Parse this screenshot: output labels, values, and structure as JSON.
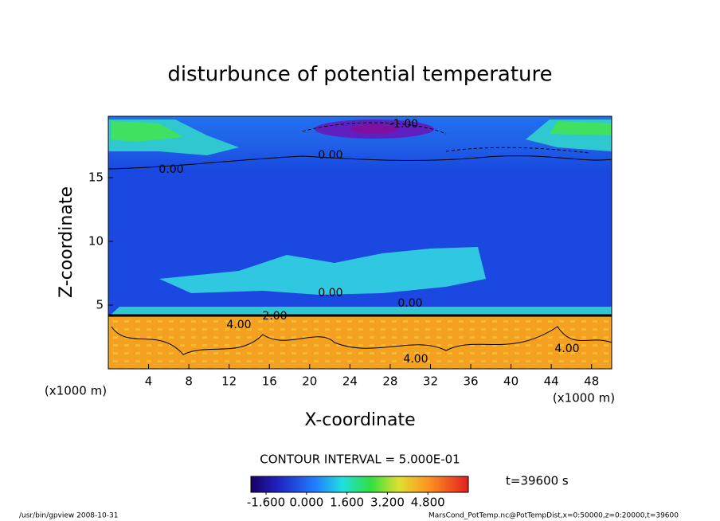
{
  "chart_data": {
    "type": "contour",
    "title": "disturbunce of potential temperature",
    "xlabel": "X-coordinate",
    "ylabel": "Z-coordinate",
    "x_unit_left": "(x1000 m)",
    "x_unit_right": "(x1000 m)",
    "xlim": [
      0,
      50
    ],
    "ylim": [
      0,
      20
    ],
    "xticks": [
      4,
      8,
      12,
      16,
      20,
      24,
      28,
      32,
      36,
      40,
      44,
      48
    ],
    "yticks": [
      5,
      10,
      15
    ],
    "contour_labels": [
      "-1.00",
      "0.00",
      "0.00",
      "4.00",
      "2.00",
      "4.00",
      "4.00",
      "0.00",
      "0.00"
    ],
    "contour_interval": "CONTOUR INTERVAL = 5.000E-01",
    "clim": [
      -2.2,
      6.4
    ],
    "cticks": [
      {
        "value": -1.6,
        "label": "-1.600"
      },
      {
        "value": 0,
        "label": "0.000"
      },
      {
        "value": 1.6,
        "label": "1.600"
      },
      {
        "value": 3.2,
        "label": "3.200"
      },
      {
        "value": 4.8,
        "label": "4.800"
      }
    ],
    "time_label": "t=39600 s",
    "footer_left": "/usr/bin/gpview   2008-10-31",
    "footer_right": "MarsCond_PotTemp.nc@PotTempDist,x=0:50000,z=0:20000,t=39600"
  }
}
